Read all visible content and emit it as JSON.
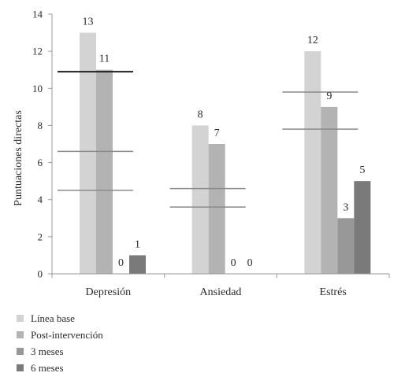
{
  "chart_data": {
    "type": "bar",
    "title": "",
    "xlabel": "",
    "ylabel": "Puntuaciones directas",
    "ylim": [
      0,
      14
    ],
    "yticks": [
      0,
      2,
      4,
      6,
      8,
      10,
      12,
      14
    ],
    "grid": false,
    "legend_position": "bottom-left",
    "categories": [
      "Depresión",
      "Ansiedad",
      "Estrés"
    ],
    "series": [
      {
        "name": "Línea base",
        "values": [
          13,
          8,
          12
        ],
        "color": "#d3d3d3"
      },
      {
        "name": "Post-intervención",
        "values": [
          11,
          7,
          9
        ],
        "color": "#b3b3b3"
      },
      {
        "name": "3 meses",
        "values": [
          0,
          0,
          3
        ],
        "color": "#989898"
      },
      {
        "name": "6 meses",
        "values": [
          1,
          0,
          5
        ],
        "color": "#7a7a7a"
      }
    ],
    "reference_lines": [
      {
        "category": "Depresión",
        "value": 10.9,
        "color": "#1f1f1f"
      },
      {
        "category": "Depresión",
        "value": 6.6,
        "color": "#8a8a8a"
      },
      {
        "category": "Depresión",
        "value": 4.5,
        "color": "#8a8a8a"
      },
      {
        "category": "Ansiedad",
        "value": 4.6,
        "color": "#8a8a8a"
      },
      {
        "category": "Ansiedad",
        "value": 3.6,
        "color": "#8a8a8a"
      },
      {
        "category": "Estrés",
        "value": 9.8,
        "color": "#8a8a8a"
      },
      {
        "category": "Estrés",
        "value": 7.8,
        "color": "#8a8a8a"
      }
    ]
  }
}
